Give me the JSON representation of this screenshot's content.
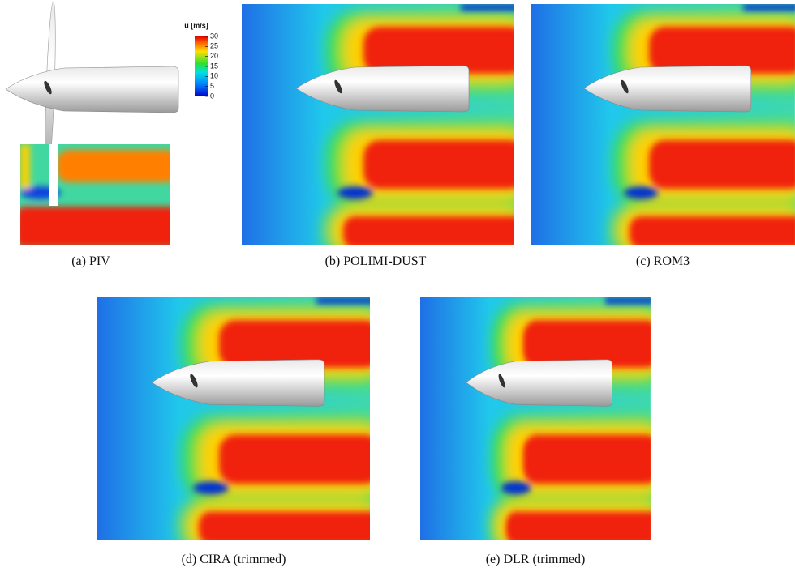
{
  "figure": {
    "colorbar": {
      "title": "u [m/s]",
      "range": [
        0,
        30
      ],
      "ticks": [
        0,
        5,
        10,
        15,
        20,
        25,
        30
      ]
    },
    "captions": [
      "(a)  PIV",
      "(b)  POLIMI-DUST",
      "(c)  ROM3",
      "(d)  CIRA (trimmed)",
      "(e)  DLR (trimmed)"
    ]
  }
}
